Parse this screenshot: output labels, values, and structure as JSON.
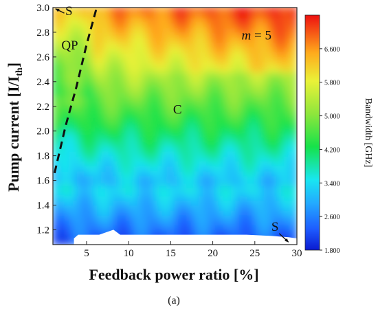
{
  "chart_data": {
    "type": "heatmap",
    "title": "",
    "xlabel": "Feedback power ratio [%]",
    "ylabel_main": "Pump current [I/I",
    "ylabel_sub": "th",
    "ylabel_end": "]",
    "xlim": [
      1,
      30
    ],
    "ylim": [
      1.08,
      3.0
    ],
    "x_ticks": [
      5,
      10,
      15,
      20,
      25,
      30
    ],
    "x_tick_labels": [
      "5",
      "10",
      "15",
      "20",
      "25",
      "30"
    ],
    "y_ticks": [
      1.2,
      1.4,
      1.6,
      1.8,
      2.0,
      2.2,
      2.4,
      2.6,
      2.8,
      3.0
    ],
    "y_tick_labels": [
      "1.2",
      "1.4",
      "1.6",
      "1.8",
      "2.0",
      "2.2",
      "2.4",
      "2.6",
      "2.8",
      "3.0"
    ],
    "colorbar": {
      "label": "Bandwidth [GHz]",
      "range": [
        1.8,
        7.4
      ],
      "ticks": [
        1.8,
        2.6,
        3.4,
        4.2,
        5.0,
        5.8,
        6.6
      ],
      "tick_labels": [
        "1.800",
        "2.600",
        "3.400",
        "4.200",
        "5.000",
        "5.800",
        "6.600"
      ]
    },
    "grid": false,
    "annotations": [
      {
        "text": "S",
        "x": 2.9,
        "y": 2.94
      },
      {
        "text": "QP",
        "x": 3.0,
        "y": 2.66
      },
      {
        "text": "C",
        "x": 15.8,
        "y": 2.14
      },
      {
        "text": "S",
        "x": 27.4,
        "y": 1.19
      },
      {
        "text_italic": "m",
        "text": " = 5",
        "x": 25.2,
        "y": 2.74
      }
    ],
    "boundary_dashed": [
      [
        1.2,
        1.66
      ],
      [
        2.5,
        2.04
      ],
      [
        3.8,
        2.36
      ],
      [
        5.0,
        2.7
      ],
      [
        6.2,
        3.0
      ]
    ],
    "no_data_boundary": [
      [
        3.5,
        1.13
      ],
      [
        4.0,
        1.16
      ],
      [
        6.5,
        1.16
      ],
      [
        8.2,
        1.2
      ],
      [
        9.0,
        1.16
      ],
      [
        12.0,
        1.16
      ],
      [
        18.0,
        1.16
      ],
      [
        24.0,
        1.16
      ],
      [
        27.0,
        1.15
      ],
      [
        29.0,
        1.14
      ],
      [
        30.0,
        1.13
      ]
    ],
    "caption": "(a)"
  }
}
